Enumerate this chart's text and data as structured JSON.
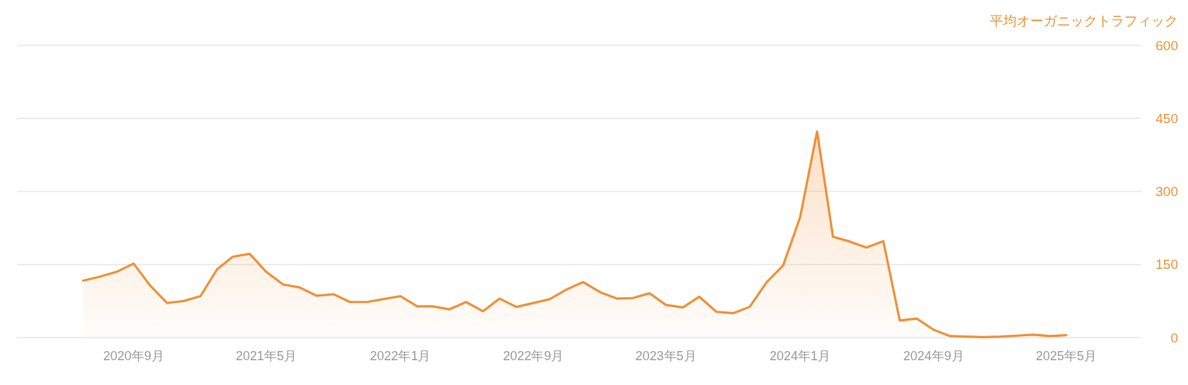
{
  "chart_data": {
    "type": "area",
    "ylabel": "平均オーガニックトラフィック",
    "x": [
      "2020-06",
      "2020-07",
      "2020-08",
      "2020-09",
      "2020-10",
      "2020-11",
      "2020-12",
      "2021-01",
      "2021-02",
      "2021-03",
      "2021-04",
      "2021-05",
      "2021-06",
      "2021-07",
      "2021-08",
      "2021-09",
      "2021-10",
      "2021-11",
      "2021-12",
      "2022-01",
      "2022-02",
      "2022-03",
      "2022-04",
      "2022-05",
      "2022-06",
      "2022-07",
      "2022-08",
      "2022-09",
      "2022-10",
      "2022-11",
      "2022-12",
      "2023-01",
      "2023-02",
      "2023-03",
      "2023-04",
      "2023-05",
      "2023-06",
      "2023-07",
      "2023-08",
      "2023-09",
      "2023-10",
      "2023-11",
      "2023-12",
      "2024-01",
      "2024-02",
      "2024-03",
      "2024-04",
      "2024-05",
      "2024-06",
      "2024-07",
      "2024-08",
      "2024-09",
      "2024-10",
      "2024-11",
      "2024-12",
      "2025-01",
      "2025-02",
      "2025-03",
      "2025-04",
      "2025-05"
    ],
    "series": [
      {
        "color": "#ef8f35",
        "values": [
          117,
          125,
          135,
          152,
          107,
          71,
          75,
          85,
          141,
          166,
          172,
          135,
          109,
          103,
          86,
          89,
          73,
          73,
          79,
          85,
          64,
          64,
          58,
          73,
          54,
          80,
          63,
          71,
          79,
          99,
          114,
          93,
          80,
          81,
          91,
          67,
          62,
          84,
          53,
          50,
          63,
          114,
          148,
          247,
          423,
          207,
          197,
          185,
          198,
          35,
          39,
          16,
          3,
          2,
          1,
          2,
          4,
          6,
          3,
          5
        ]
      }
    ],
    "xlim": [
      "2020-02-01",
      "2025-09-15"
    ],
    "xticks": [
      {
        "value": "2020-09",
        "label": "2020年9月"
      },
      {
        "value": "2021-05",
        "label": "2021年5月"
      },
      {
        "value": "2022-01",
        "label": "2022年1月"
      },
      {
        "value": "2022-09",
        "label": "2022年9月"
      },
      {
        "value": "2023-05",
        "label": "2023年5月"
      },
      {
        "value": "2024-01",
        "label": "2024年1月"
      },
      {
        "value": "2024-09",
        "label": "2024年9月"
      },
      {
        "value": "2025-05",
        "label": "2025年5月"
      }
    ],
    "ylim": [
      0,
      600
    ],
    "yticks": [
      0,
      150,
      300,
      450,
      600
    ],
    "grid": "y"
  }
}
